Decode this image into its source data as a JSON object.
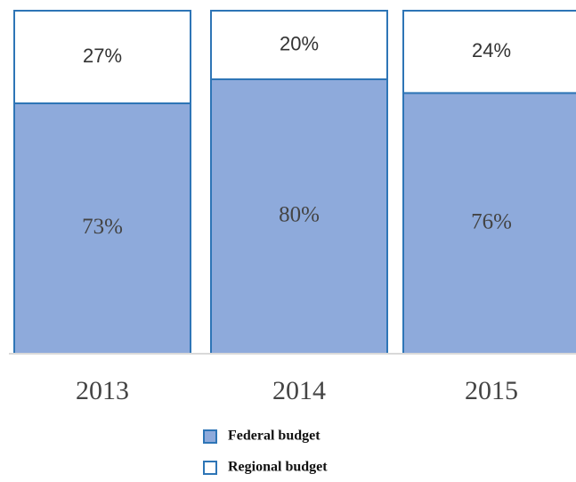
{
  "chart_data": {
    "type": "stacked_bar",
    "categories": [
      "2013",
      "2014",
      "2015"
    ],
    "series": [
      {
        "name": "Federal budget",
        "color": "#8eaadb",
        "values": [
          73,
          80,
          76
        ],
        "value_labels": [
          "73%",
          "80%",
          "76%"
        ]
      },
      {
        "name": "Regional budget",
        "color": "#ffffff",
        "values": [
          27,
          20,
          24
        ],
        "value_labels": [
          "27%",
          "20%",
          "24%"
        ]
      }
    ]
  }
}
